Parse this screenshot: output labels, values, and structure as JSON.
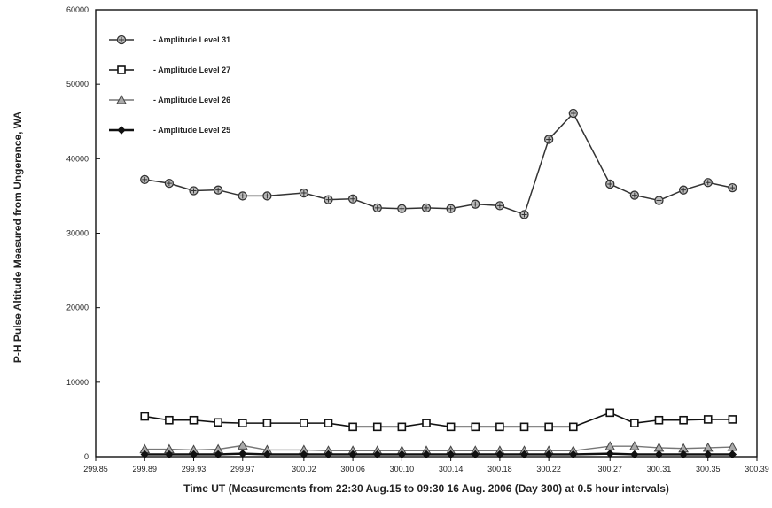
{
  "chart_data": {
    "type": "line",
    "title": "",
    "xlabel": "Time UT (Measurements from 22:30 Aug.15 to 09:30 16 Aug. 2006 (Day 300) at 0.5 hour intervals)",
    "ylabel": "P-H Pulse Altitude  Measured from Ungerence, WA",
    "xlim": [
      299.85,
      300.39
    ],
    "ylim": [
      0,
      60000
    ],
    "x_ticks": [
      "299.85",
      "299.89",
      "299.93",
      "299.97",
      "300.02",
      "300.06",
      "300.10",
      "300.14",
      "300.18",
      "300.22",
      "300.27",
      "300.31",
      "300.35",
      "300.39"
    ],
    "y_ticks": [
      "0",
      "10000",
      "20000",
      "30000",
      "40000",
      "50000",
      "60000"
    ],
    "grid": false,
    "legend_position": "top-left",
    "x": [
      299.89,
      299.91,
      299.93,
      299.95,
      299.97,
      299.99,
      300.02,
      300.04,
      300.06,
      300.08,
      300.1,
      300.12,
      300.14,
      300.16,
      300.18,
      300.2,
      300.22,
      300.24,
      300.27,
      300.29,
      300.31,
      300.33,
      300.35,
      300.37
    ],
    "series": [
      {
        "name": "Amplitude Level 31",
        "marker": "circle-star",
        "values": [
          37200,
          36700,
          35700,
          35800,
          35000,
          35000,
          35400,
          34500,
          34600,
          33400,
          33300,
          33400,
          33300,
          33900,
          33700,
          32500,
          42600,
          46100,
          36600,
          35100,
          34400,
          35800,
          36800,
          36100
        ]
      },
      {
        "name": "Amplitude Level 27",
        "marker": "square",
        "values": [
          5400,
          4900,
          4900,
          4600,
          4500,
          4500,
          4500,
          4500,
          4000,
          4000,
          4000,
          4500,
          4000,
          4000,
          4000,
          4000,
          4000,
          4000,
          5900,
          4500,
          4900,
          4900,
          5000,
          5000
        ]
      },
      {
        "name": "Amplitude Level 26",
        "marker": "triangle",
        "values": [
          1000,
          1000,
          900,
          1000,
          1500,
          900,
          900,
          800,
          800,
          800,
          800,
          800,
          800,
          800,
          800,
          800,
          800,
          800,
          1400,
          1400,
          1200,
          1100,
          1200,
          1300
        ]
      },
      {
        "name": "Amplitude Level 25",
        "marker": "diamond",
        "values": [
          300,
          300,
          300,
          300,
          400,
          300,
          300,
          300,
          300,
          300,
          300,
          300,
          300,
          300,
          300,
          300,
          300,
          300,
          400,
          300,
          300,
          300,
          300,
          300
        ]
      }
    ]
  }
}
